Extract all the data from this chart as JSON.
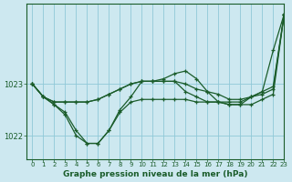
{
  "title": "Graphe pression niveau de la mer (hPa)",
  "bg_color": "#cde8f0",
  "grid_color": "#8fc8d8",
  "line_color": "#1a5c2a",
  "xlim": [
    -0.5,
    23
  ],
  "ylim": [
    1021.55,
    1024.55
  ],
  "yticks": [
    1022,
    1023
  ],
  "xticks": [
    0,
    1,
    2,
    3,
    4,
    5,
    6,
    7,
    8,
    9,
    10,
    11,
    12,
    13,
    14,
    15,
    16,
    17,
    18,
    19,
    20,
    21,
    22,
    23
  ],
  "series": [
    [
      1023.0,
      1022.75,
      1022.65,
      1022.65,
      1022.65,
      1022.65,
      1022.7,
      1022.8,
      1022.9,
      1023.0,
      1023.05,
      1023.05,
      1023.05,
      1023.05,
      1023.0,
      1022.9,
      1022.85,
      1022.8,
      1022.7,
      1022.7,
      1022.75,
      1022.8,
      1022.9,
      1024.35
    ],
    [
      1023.0,
      1022.75,
      1022.65,
      1022.65,
      1022.65,
      1022.65,
      1022.7,
      1022.8,
      1022.9,
      1023.0,
      1023.05,
      1023.05,
      1023.05,
      1023.05,
      1022.85,
      1022.75,
      1022.65,
      1022.65,
      1022.65,
      1022.65,
      1022.75,
      1022.85,
      1022.95,
      1024.35
    ],
    [
      1023.0,
      1022.75,
      1022.6,
      1022.45,
      1022.1,
      1021.85,
      1021.85,
      1022.1,
      1022.45,
      1022.65,
      1022.7,
      1022.7,
      1022.7,
      1022.7,
      1022.7,
      1022.65,
      1022.65,
      1022.65,
      1022.6,
      1022.6,
      1022.6,
      1022.7,
      1022.8,
      1024.35
    ],
    [
      1023.0,
      1022.75,
      1022.6,
      1022.4,
      1022.0,
      1021.85,
      1021.85,
      1022.1,
      1022.5,
      1022.75,
      1023.05,
      1023.05,
      1023.1,
      1023.2,
      1023.25,
      1023.1,
      1022.85,
      1022.65,
      1022.6,
      1022.6,
      1022.75,
      1022.85,
      1023.65,
      1024.35
    ]
  ]
}
